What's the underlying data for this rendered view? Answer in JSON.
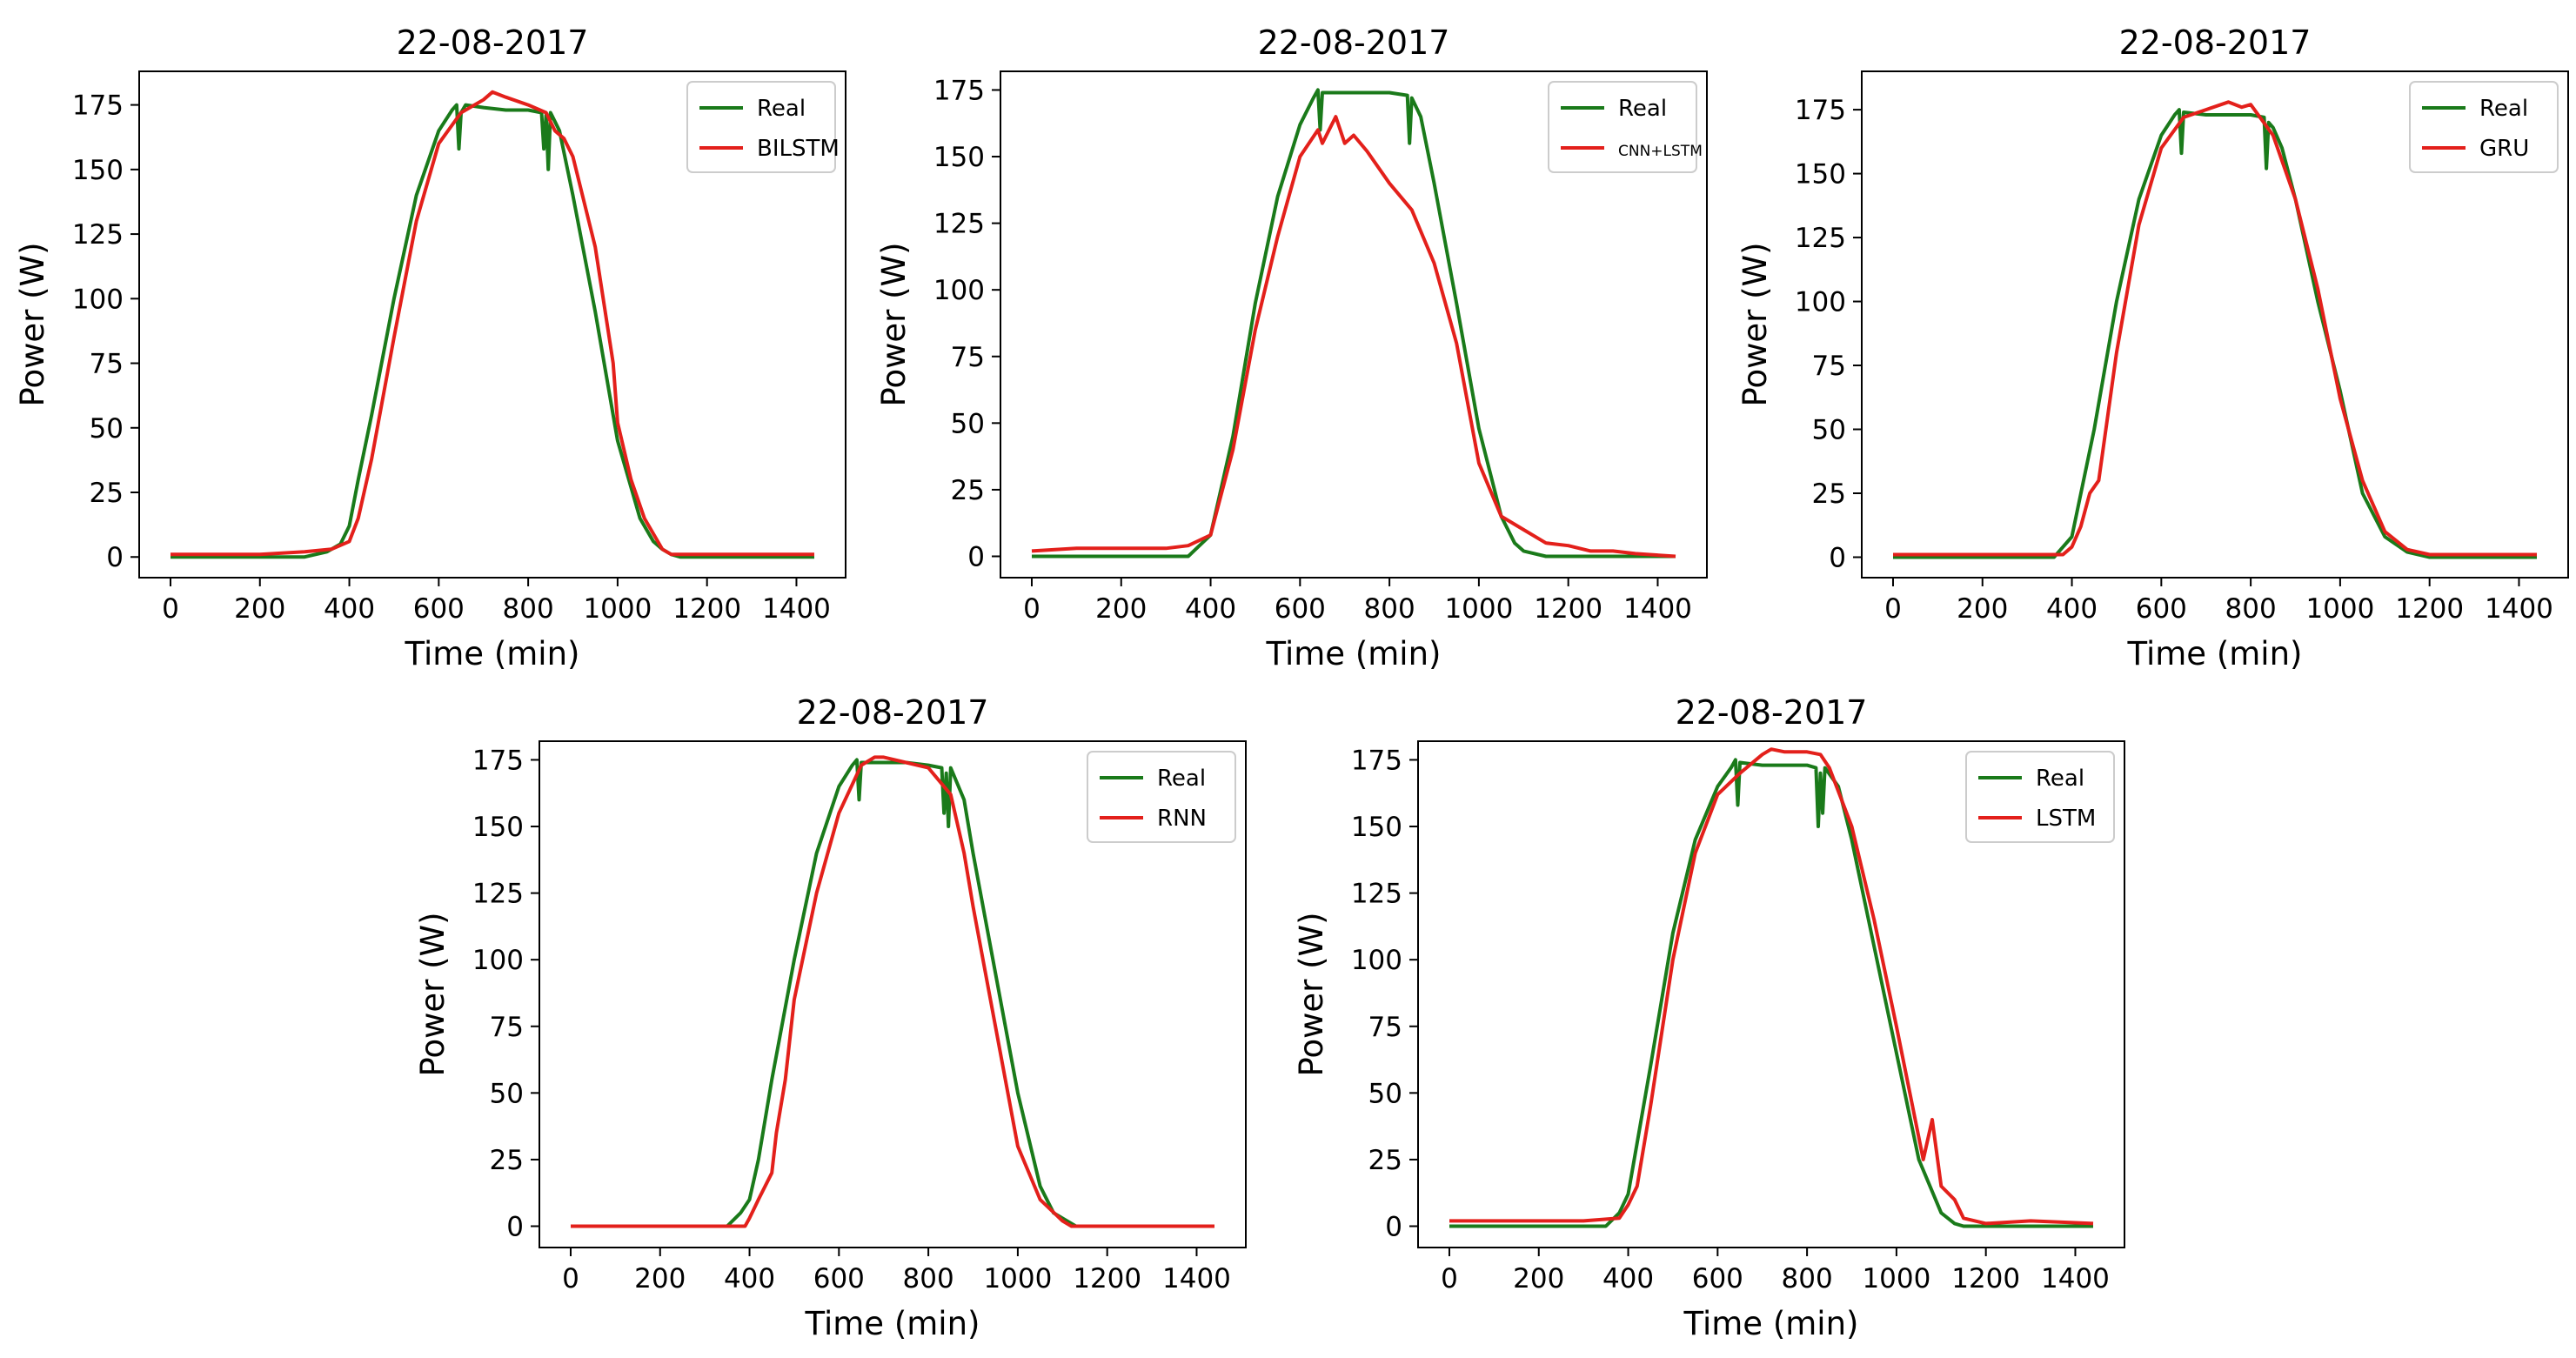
{
  "colors": {
    "real": "#1a7a1a",
    "pred": "#e3201b",
    "axis": "#000000",
    "legend_border": "#cccccc"
  },
  "charts": [
    {
      "type": "line",
      "title": "22-08-2017",
      "xlabel": "Time (min)",
      "ylabel": "Power (W)",
      "xlim": [
        -70,
        1510
      ],
      "ylim": [
        -8,
        188
      ],
      "xticks": [
        0,
        200,
        400,
        600,
        800,
        1000,
        1200,
        1400
      ],
      "yticks": [
        0,
        25,
        50,
        75,
        100,
        125,
        150,
        175
      ],
      "legend_position": "upper-right",
      "series": [
        {
          "name": "Real",
          "role": "real",
          "x": [
            0,
            300,
            350,
            380,
            400,
            420,
            450,
            500,
            550,
            600,
            630,
            640,
            645,
            650,
            660,
            700,
            750,
            800,
            830,
            835,
            840,
            845,
            850,
            870,
            900,
            950,
            1000,
            1050,
            1080,
            1100,
            1120,
            1140,
            1440
          ],
          "y": [
            0,
            0,
            2,
            5,
            12,
            30,
            55,
            100,
            140,
            165,
            173,
            175,
            158,
            172,
            175,
            174,
            173,
            173,
            172,
            158,
            171,
            150,
            172,
            165,
            140,
            95,
            45,
            15,
            6,
            3,
            1,
            0,
            0
          ]
        },
        {
          "name": "BILSTM",
          "role": "pred",
          "x": [
            0,
            100,
            200,
            300,
            360,
            400,
            420,
            450,
            500,
            550,
            600,
            650,
            700,
            720,
            750,
            800,
            840,
            860,
            880,
            900,
            950,
            990,
            1000,
            1030,
            1060,
            1100,
            1120,
            1440
          ],
          "y": [
            1,
            1,
            1,
            2,
            3,
            6,
            15,
            38,
            85,
            130,
            160,
            172,
            177,
            180,
            178,
            175,
            172,
            165,
            162,
            155,
            120,
            75,
            52,
            30,
            15,
            3,
            1,
            1
          ]
        }
      ]
    },
    {
      "type": "line",
      "title": "22-08-2017",
      "xlabel": "Time (min)",
      "ylabel": "Power (W)",
      "xlim": [
        -70,
        1510
      ],
      "ylim": [
        -8,
        182
      ],
      "xticks": [
        0,
        200,
        400,
        600,
        800,
        1000,
        1200,
        1400
      ],
      "yticks": [
        0,
        25,
        50,
        75,
        100,
        125,
        150,
        175
      ],
      "legend_position": "upper-right",
      "series": [
        {
          "name": "Real",
          "role": "real",
          "x": [
            0,
            350,
            400,
            450,
            500,
            550,
            600,
            630,
            640,
            645,
            650,
            700,
            750,
            800,
            840,
            845,
            850,
            870,
            900,
            950,
            1000,
            1050,
            1080,
            1100,
            1150,
            1440
          ],
          "y": [
            0,
            0,
            8,
            45,
            95,
            135,
            162,
            172,
            175,
            160,
            174,
            174,
            174,
            174,
            173,
            155,
            172,
            165,
            140,
            95,
            48,
            15,
            5,
            2,
            0,
            0
          ]
        },
        {
          "name": "CNN+LSTM",
          "role": "pred",
          "x": [
            0,
            100,
            200,
            300,
            350,
            400,
            450,
            500,
            550,
            600,
            640,
            650,
            680,
            700,
            720,
            750,
            800,
            850,
            900,
            950,
            1000,
            1050,
            1100,
            1150,
            1200,
            1250,
            1300,
            1350,
            1440
          ],
          "y": [
            2,
            3,
            3,
            3,
            4,
            8,
            40,
            85,
            120,
            150,
            160,
            155,
            165,
            155,
            158,
            152,
            140,
            130,
            110,
            80,
            35,
            15,
            10,
            5,
            4,
            2,
            2,
            1,
            0
          ]
        }
      ]
    },
    {
      "type": "line",
      "title": "22-08-2017",
      "xlabel": "Time (min)",
      "ylabel": "Power (W)",
      "xlim": [
        -70,
        1510
      ],
      "ylim": [
        -8,
        190
      ],
      "xticks": [
        0,
        200,
        400,
        600,
        800,
        1000,
        1200,
        1400
      ],
      "yticks": [
        0,
        25,
        50,
        75,
        100,
        125,
        150,
        175
      ],
      "legend_position": "upper-right",
      "series": [
        {
          "name": "Real",
          "role": "real",
          "x": [
            0,
            360,
            400,
            450,
            500,
            550,
            600,
            630,
            640,
            645,
            650,
            700,
            750,
            800,
            830,
            835,
            840,
            850,
            870,
            900,
            950,
            1000,
            1050,
            1100,
            1150,
            1200,
            1440
          ],
          "y": [
            0,
            0,
            8,
            50,
            100,
            140,
            165,
            173,
            175,
            158,
            174,
            173,
            173,
            173,
            172,
            152,
            170,
            168,
            160,
            140,
            100,
            65,
            25,
            8,
            2,
            0,
            0
          ]
        },
        {
          "name": "GRU",
          "role": "pred",
          "x": [
            0,
            380,
            400,
            420,
            440,
            460,
            500,
            550,
            600,
            650,
            700,
            750,
            780,
            800,
            850,
            900,
            950,
            1000,
            1050,
            1100,
            1150,
            1200,
            1440
          ],
          "y": [
            1,
            1,
            4,
            12,
            25,
            30,
            80,
            130,
            160,
            172,
            175,
            178,
            176,
            177,
            165,
            140,
            105,
            62,
            30,
            10,
            3,
            1,
            1
          ]
        }
      ]
    },
    {
      "type": "line",
      "title": "22-08-2017",
      "xlabel": "Time (min)",
      "ylabel": "Power (W)",
      "xlim": [
        -70,
        1510
      ],
      "ylim": [
        -8,
        182
      ],
      "xticks": [
        0,
        200,
        400,
        600,
        800,
        1000,
        1200,
        1400
      ],
      "yticks": [
        0,
        25,
        50,
        75,
        100,
        125,
        150,
        175
      ],
      "legend_position": "upper-right",
      "series": [
        {
          "name": "Real",
          "role": "real",
          "x": [
            0,
            350,
            380,
            400,
            420,
            450,
            500,
            550,
            600,
            630,
            640,
            645,
            650,
            700,
            750,
            800,
            830,
            835,
            840,
            845,
            850,
            880,
            900,
            950,
            1000,
            1050,
            1080,
            1100,
            1130,
            1440
          ],
          "y": [
            0,
            0,
            5,
            10,
            25,
            55,
            100,
            140,
            165,
            173,
            175,
            160,
            174,
            174,
            174,
            173,
            172,
            155,
            170,
            150,
            172,
            160,
            140,
            95,
            50,
            15,
            5,
            3,
            0,
            0
          ]
        },
        {
          "name": "RNN",
          "role": "pred",
          "x": [
            0,
            200,
            390,
            400,
            420,
            450,
            460,
            480,
            500,
            550,
            600,
            650,
            680,
            700,
            750,
            800,
            850,
            880,
            900,
            950,
            1000,
            1050,
            1100,
            1120,
            1440
          ],
          "y": [
            0,
            0,
            0,
            3,
            10,
            20,
            35,
            55,
            85,
            125,
            155,
            173,
            176,
            176,
            174,
            172,
            162,
            140,
            120,
            75,
            30,
            10,
            2,
            0,
            0
          ]
        }
      ]
    },
    {
      "type": "line",
      "title": "22-08-2017",
      "xlabel": "Time (min)",
      "ylabel": "Power (W)",
      "xlim": [
        -70,
        1510
      ],
      "ylim": [
        -8,
        182
      ],
      "xticks": [
        0,
        200,
        400,
        600,
        800,
        1000,
        1200,
        1400
      ],
      "yticks": [
        0,
        25,
        50,
        75,
        100,
        125,
        150,
        175
      ],
      "legend_position": "upper-right",
      "series": [
        {
          "name": "Real",
          "role": "real",
          "x": [
            0,
            350,
            380,
            400,
            450,
            500,
            550,
            600,
            630,
            640,
            645,
            650,
            700,
            750,
            800,
            820,
            825,
            830,
            835,
            840,
            870,
            900,
            950,
            1000,
            1050,
            1100,
            1130,
            1150,
            1440
          ],
          "y": [
            0,
            0,
            5,
            12,
            60,
            110,
            145,
            165,
            172,
            175,
            158,
            174,
            173,
            173,
            173,
            172,
            150,
            170,
            155,
            172,
            165,
            145,
            105,
            65,
            25,
            5,
            1,
            0,
            0
          ]
        },
        {
          "name": "LSTM",
          "role": "pred",
          "x": [
            0,
            100,
            200,
            300,
            380,
            400,
            420,
            450,
            500,
            550,
            600,
            650,
            700,
            720,
            750,
            800,
            830,
            850,
            900,
            950,
            1000,
            1030,
            1060,
            1080,
            1100,
            1130,
            1150,
            1200,
            1300,
            1440
          ],
          "y": [
            2,
            2,
            2,
            2,
            3,
            8,
            15,
            45,
            100,
            140,
            162,
            170,
            177,
            179,
            178,
            178,
            177,
            172,
            150,
            115,
            75,
            50,
            25,
            40,
            15,
            10,
            3,
            1,
            2,
            1
          ]
        }
      ]
    }
  ]
}
